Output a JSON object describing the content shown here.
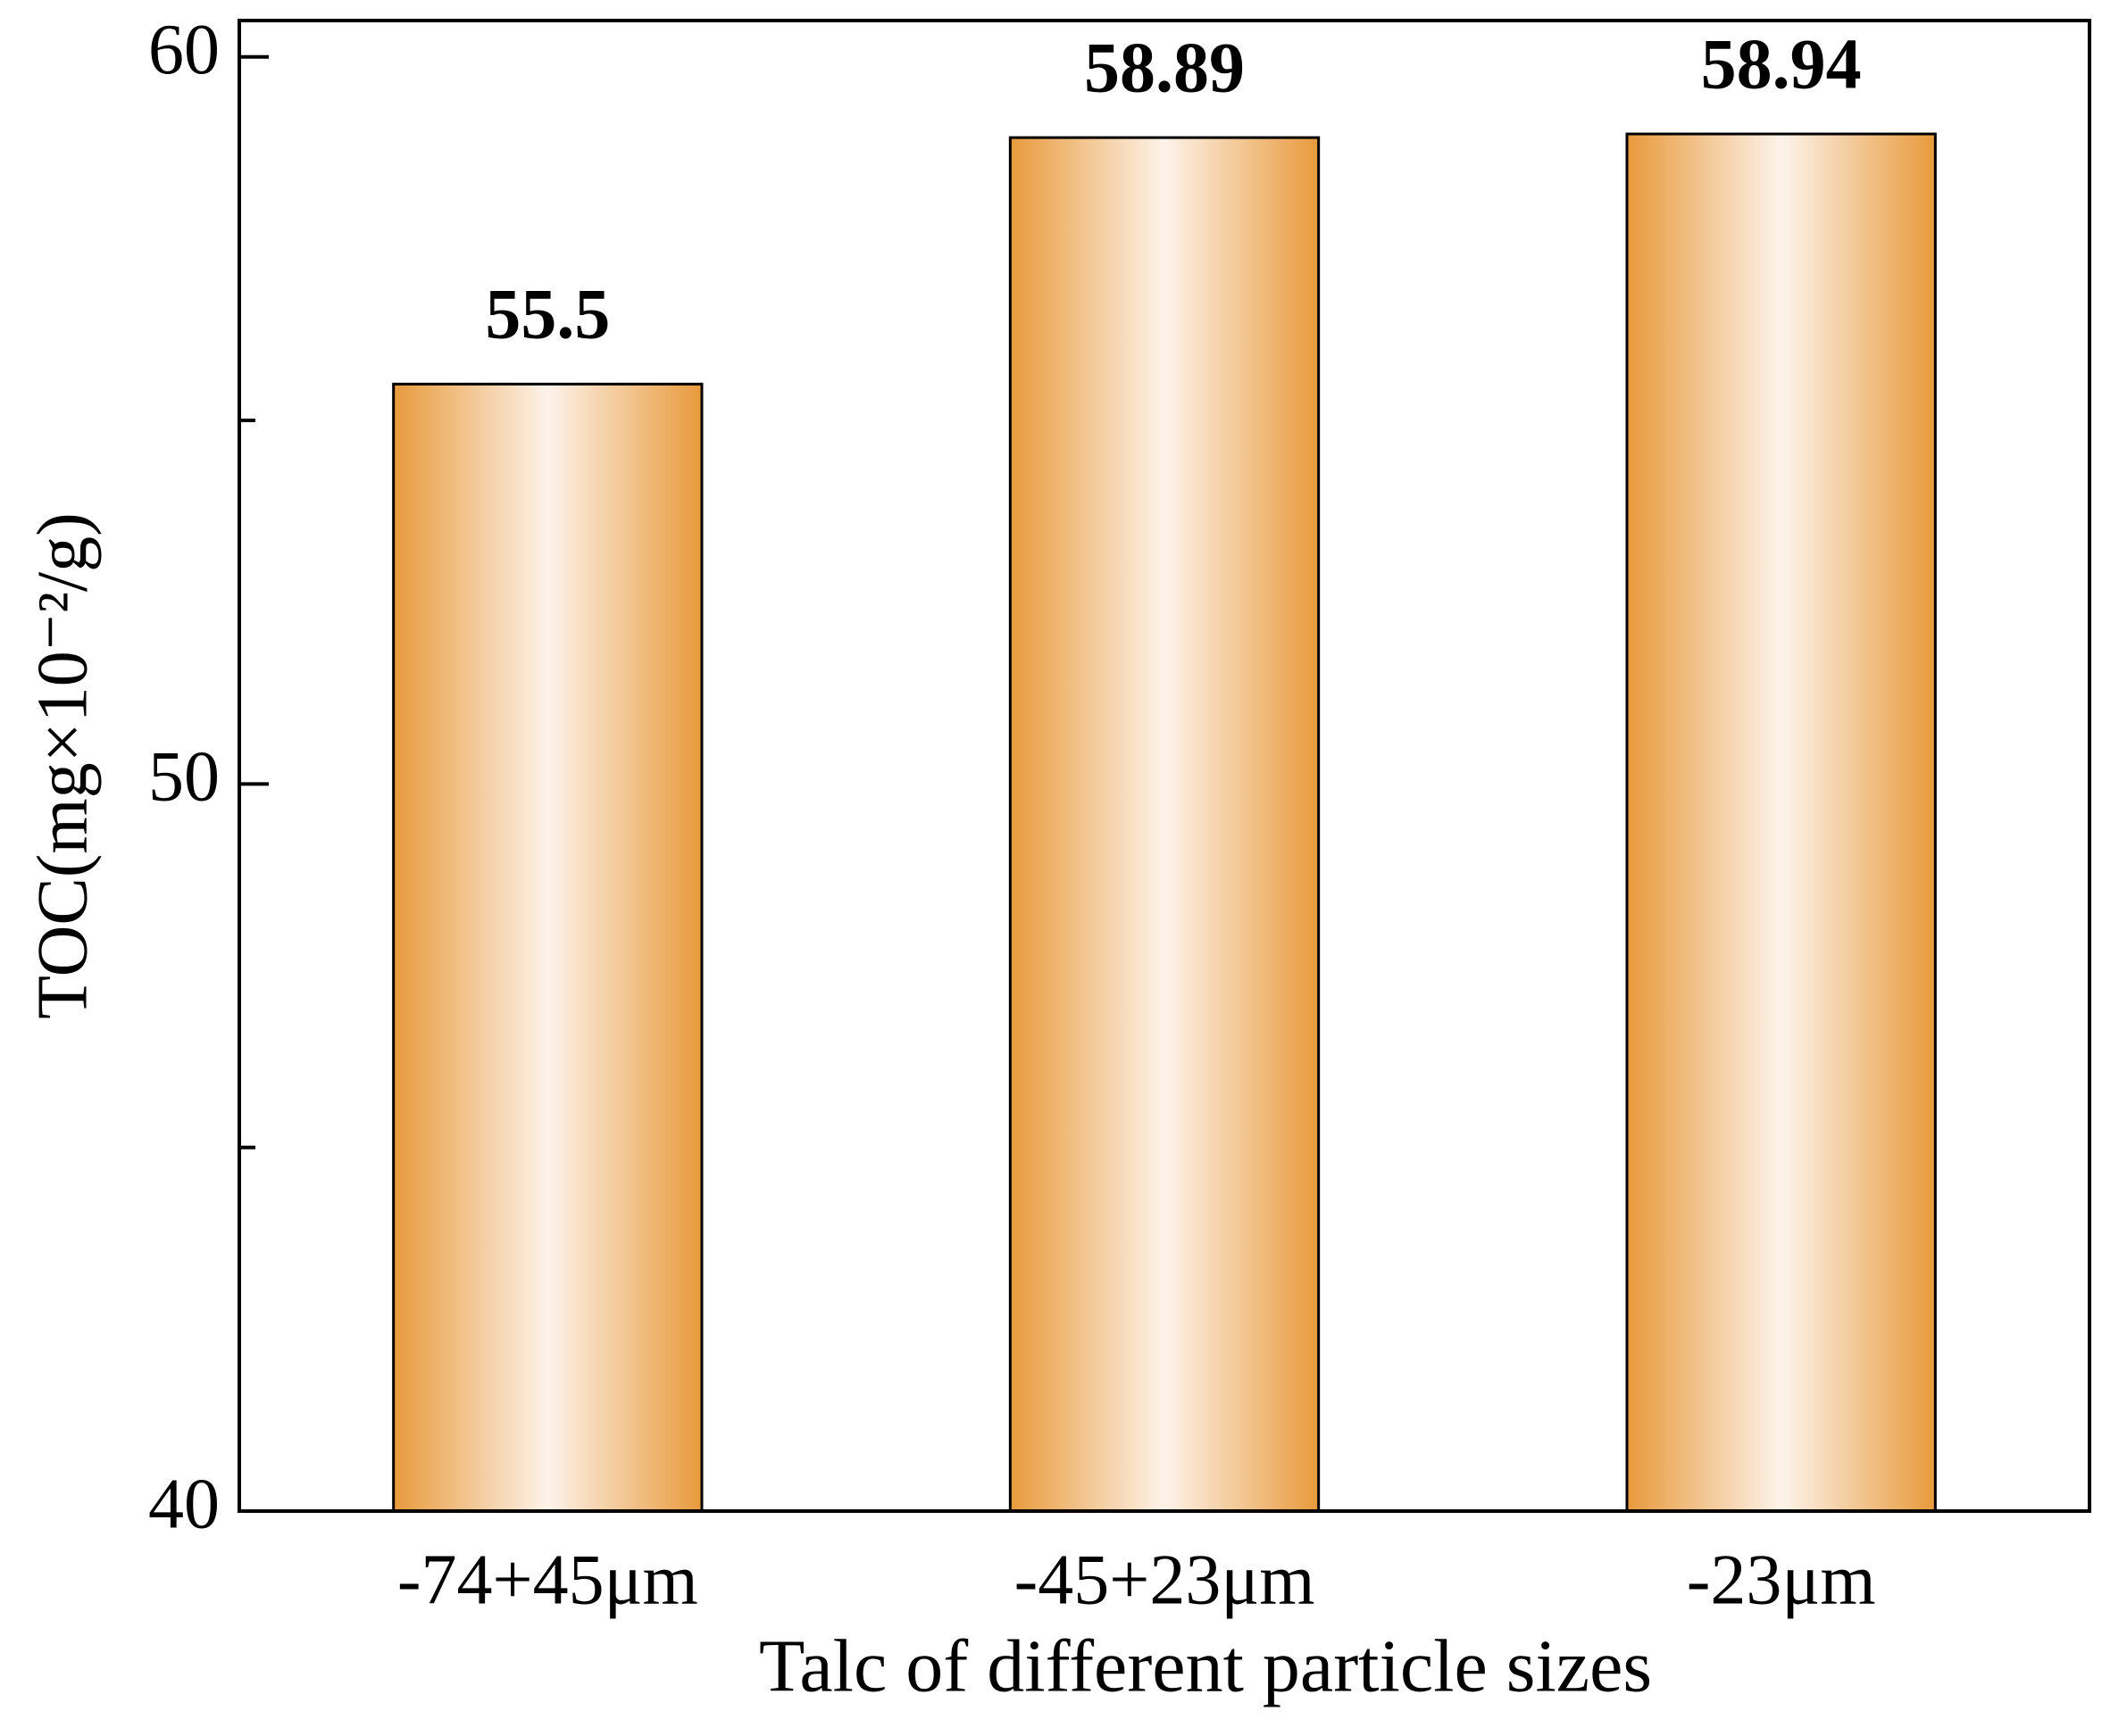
{
  "chart_data": {
    "type": "bar",
    "categories": [
      "-74+45μm",
      "-45+23μm",
      "-23μm"
    ],
    "values": [
      55.5,
      58.89,
      58.94
    ],
    "color": "#e89a3c",
    "ylim": [
      40,
      60.5
    ],
    "yticks": [
      40,
      50,
      60
    ],
    "yminorticks": [
      45,
      55
    ],
    "xlabel": "Talc of different particle sizes",
    "ylabel": "TOC(mg×10⁻²/g)",
    "grid": false
  }
}
